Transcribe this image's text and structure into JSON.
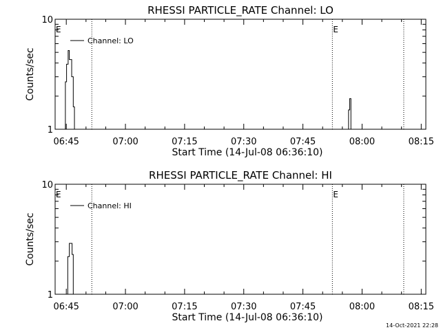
{
  "chart_data": [
    {
      "type": "line",
      "title": "RHESSI PARTICLE_RATE Channel: LO",
      "xlabel": "Start Time (14-Jul-08 06:36:10)",
      "ylabel": "Counts/sec",
      "yscale": "log",
      "ylim": [
        1,
        10
      ],
      "y_ticks": [
        {
          "value": 1,
          "label": "1"
        },
        {
          "value": 10,
          "label": "10"
        }
      ],
      "xlim_minutes": [
        6.0,
        100.0
      ],
      "x_ticks": [
        {
          "value": 8.83,
          "label": "06:45"
        },
        {
          "value": 23.83,
          "label": "07:00"
        },
        {
          "value": 38.83,
          "label": "07:15"
        },
        {
          "value": 53.83,
          "label": "07:30"
        },
        {
          "value": 68.83,
          "label": "07:45"
        },
        {
          "value": 83.83,
          "label": "08:00"
        },
        {
          "value": 98.83,
          "label": "08:15"
        }
      ],
      "vlines_minutes": [
        15.3,
        76.3,
        94.4
      ],
      "markers": [
        {
          "label": "E",
          "x_minutes": 6.0
        },
        {
          "label": "E",
          "x_minutes": 76.3
        }
      ],
      "legend": {
        "placement": "top-left"
      },
      "grid": false,
      "series": [
        {
          "name": "Channel: LO",
          "color": "#000000",
          "x_minutes": [
            8.0,
            8.6,
            8.9,
            9.3,
            9.6,
            9.9,
            10.2,
            10.6,
            10.9,
            11.3
          ],
          "y": [
            1.0,
            2.7,
            3.9,
            5.2,
            4.3,
            4.3,
            3.0,
            1.6,
            1.0,
            1.0
          ],
          "segments": [
            {
              "x_minutes": [
                7.5,
                8.0,
                8.6,
                8.9,
                9.3,
                9.6,
                9.9,
                10.2,
                10.6,
                10.9,
                11.5
              ],
              "y": [
                1.0,
                1.0,
                2.7,
                3.9,
                5.2,
                4.3,
                4.3,
                3.0,
                1.6,
                1.0,
                1.0
              ]
            },
            {
              "x_minutes": [
                80.0,
                80.4,
                80.7,
                81.0,
                81.4
              ],
              "y": [
                1.0,
                1.5,
                1.9,
                1.0,
                1.0
              ]
            }
          ]
        }
      ]
    },
    {
      "type": "line",
      "title": "RHESSI PARTICLE_RATE Channel: HI",
      "xlabel": "Start Time (14-Jul-08 06:36:10)",
      "ylabel": "Counts/sec",
      "yscale": "log",
      "ylim": [
        1,
        10
      ],
      "y_ticks": [
        {
          "value": 1,
          "label": "1"
        },
        {
          "value": 10,
          "label": "10"
        }
      ],
      "xlim_minutes": [
        6.0,
        100.0
      ],
      "x_ticks": [
        {
          "value": 8.83,
          "label": "06:45"
        },
        {
          "value": 23.83,
          "label": "07:00"
        },
        {
          "value": 38.83,
          "label": "07:15"
        },
        {
          "value": 53.83,
          "label": "07:30"
        },
        {
          "value": 68.83,
          "label": "07:45"
        },
        {
          "value": 83.83,
          "label": "08:00"
        },
        {
          "value": 98.83,
          "label": "08:15"
        }
      ],
      "vlines_minutes": [
        15.3,
        76.3,
        94.4
      ],
      "markers": [
        {
          "label": "E",
          "x_minutes": 6.0
        },
        {
          "label": "E",
          "x_minutes": 76.3
        }
      ],
      "legend": {
        "placement": "top-left"
      },
      "grid": false,
      "series": [
        {
          "name": "Channel: HI",
          "color": "#000000",
          "segments": [
            {
              "x_minutes": [
                8.8,
                9.2,
                9.6,
                9.9,
                10.3,
                10.6,
                11.0
              ],
              "y": [
                1.0,
                2.2,
                2.9,
                2.9,
                2.3,
                1.0,
                1.0
              ]
            }
          ]
        }
      ]
    }
  ],
  "footer": {
    "timestamp": "14-Oct-2021 22:28"
  }
}
